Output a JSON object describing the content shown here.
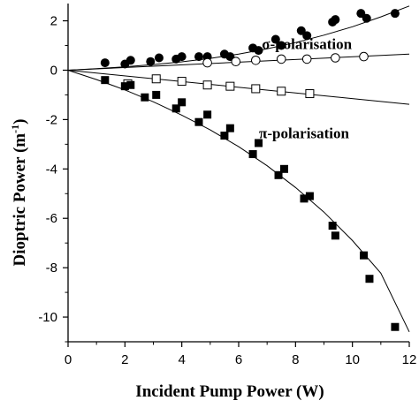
{
  "chart_data": {
    "type": "scatter",
    "title": "",
    "xlabel": "Incident Pump Power (W)",
    "ylabel_main": "Dioptric Power (m",
    "ylabel_sup": "-1",
    "ylabel_close": ")",
    "xlim": [
      0,
      12
    ],
    "ylim": [
      -11,
      2.7
    ],
    "xticks": [
      0,
      2,
      4,
      6,
      8,
      10,
      12
    ],
    "xtick_labels": [
      "0",
      "2",
      "4",
      "6",
      "8",
      "10",
      "12"
    ],
    "yticks": [
      2,
      0,
      -2,
      -4,
      -6,
      -8,
      -10
    ],
    "ytick_labels": [
      "2",
      "0",
      "-2",
      "-4",
      "-6",
      "-8",
      "-10"
    ],
    "grid": false,
    "annotations": [
      {
        "text": "σ-polarisation",
        "x": 8.4,
        "y": 0.85
      },
      {
        "text": "π-polarisation",
        "x": 8.3,
        "y": -2.75
      }
    ],
    "series": [
      {
        "marker": "filled-circle",
        "x": [
          1.3,
          2.0,
          2.2,
          2.9,
          3.2,
          3.8,
          4.0,
          4.6,
          4.9,
          5.5,
          5.7,
          6.5,
          6.7,
          7.3,
          7.5,
          8.2,
          8.4,
          9.3,
          9.4,
          10.3,
          10.5,
          11.5
        ],
        "y": [
          0.3,
          0.25,
          0.4,
          0.35,
          0.5,
          0.45,
          0.55,
          0.55,
          0.55,
          0.65,
          0.55,
          0.9,
          0.8,
          1.25,
          1.0,
          1.6,
          1.4,
          1.95,
          2.05,
          2.3,
          2.1,
          2.3
        ]
      },
      {
        "marker": "open-circle",
        "x": [
          4.9,
          5.9,
          6.6,
          7.5,
          8.4,
          9.4,
          10.4
        ],
        "y": [
          0.3,
          0.35,
          0.4,
          0.45,
          0.45,
          0.5,
          0.55
        ]
      },
      {
        "marker": "open-square",
        "x": [
          2.1,
          3.1,
          4.0,
          4.9,
          5.7,
          6.6,
          7.5,
          8.5
        ],
        "y": [
          -0.55,
          -0.35,
          -0.45,
          -0.6,
          -0.65,
          -0.75,
          -0.85,
          -0.95
        ]
      },
      {
        "marker": "filled-square",
        "x": [
          1.3,
          2.0,
          2.2,
          2.7,
          3.1,
          3.8,
          4.0,
          4.6,
          4.9,
          5.5,
          5.7,
          6.5,
          6.7,
          7.4,
          7.6,
          8.3,
          8.5,
          9.3,
          9.4,
          10.4,
          10.6,
          11.5
        ],
        "y": [
          -0.4,
          -0.65,
          -0.6,
          -1.1,
          -1.0,
          -1.55,
          -1.3,
          -2.1,
          -1.8,
          -2.65,
          -2.35,
          -3.4,
          -2.95,
          -4.25,
          -4.0,
          -5.2,
          -5.1,
          -6.3,
          -6.7,
          -7.5,
          -8.45,
          -10.4
        ]
      }
    ],
    "fit_curves": [
      {
        "x": [
          0,
          1,
          2,
          3,
          4,
          5,
          6,
          7,
          8,
          9,
          10,
          11,
          12
        ],
        "y": [
          0,
          0.06,
          0.14,
          0.23,
          0.34,
          0.48,
          0.65,
          0.87,
          1.12,
          1.42,
          1.76,
          2.16,
          2.6
        ]
      },
      {
        "x": [
          0,
          12
        ],
        "y": [
          0,
          0.65
        ]
      },
      {
        "x": [
          0,
          12
        ],
        "y": [
          0,
          -1.38
        ]
      },
      {
        "x": [
          0,
          1,
          2,
          3,
          4,
          5,
          6,
          7,
          8,
          9,
          10,
          11,
          12
        ],
        "y": [
          0,
          -0.38,
          -0.8,
          -1.28,
          -1.82,
          -2.42,
          -3.1,
          -3.87,
          -4.75,
          -5.75,
          -6.9,
          -8.22,
          -10.6
        ]
      }
    ]
  }
}
